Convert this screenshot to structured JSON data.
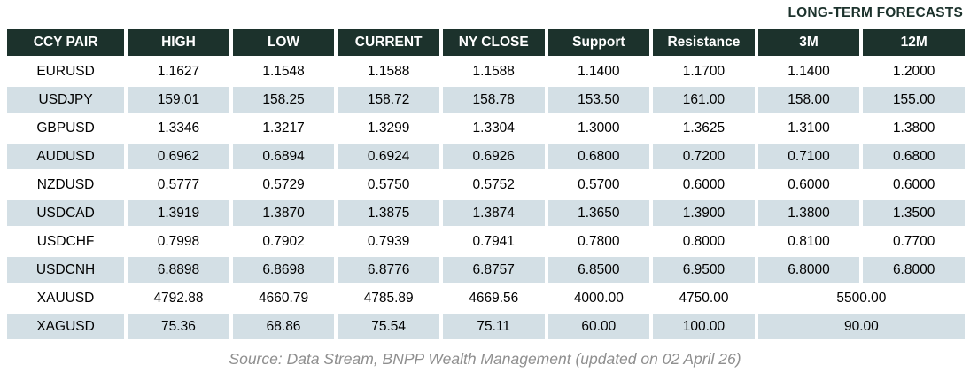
{
  "title": "LONG-TERM FORECASTS",
  "columns": [
    "CCY PAIR",
    "HIGH",
    "LOW",
    "CURRENT",
    "NY CLOSE",
    "Support",
    "Resistance",
    "3M",
    "12M"
  ],
  "rows": [
    {
      "pair": "EURUSD",
      "high": "1.1627",
      "low": "1.1548",
      "current": "1.1588",
      "ny_close": "1.1588",
      "support": "1.1400",
      "resistance": "1.1700",
      "m3": "1.1400",
      "m12": "1.2000"
    },
    {
      "pair": "USDJPY",
      "high": "159.01",
      "low": "158.25",
      "current": "158.72",
      "ny_close": "158.78",
      "support": "153.50",
      "resistance": "161.00",
      "m3": "158.00",
      "m12": "155.00"
    },
    {
      "pair": "GBPUSD",
      "high": "1.3346",
      "low": "1.3217",
      "current": "1.3299",
      "ny_close": "1.3304",
      "support": "1.3000",
      "resistance": "1.3625",
      "m3": "1.3100",
      "m12": "1.3800"
    },
    {
      "pair": "AUDUSD",
      "high": "0.6962",
      "low": "0.6894",
      "current": "0.6924",
      "ny_close": "0.6926",
      "support": "0.6800",
      "resistance": "0.7200",
      "m3": "0.7100",
      "m12": "0.6800"
    },
    {
      "pair": "NZDUSD",
      "high": "0.5777",
      "low": "0.5729",
      "current": "0.5750",
      "ny_close": "0.5752",
      "support": "0.5700",
      "resistance": "0.6000",
      "m3": "0.6000",
      "m12": "0.6000"
    },
    {
      "pair": "USDCAD",
      "high": "1.3919",
      "low": "1.3870",
      "current": "1.3875",
      "ny_close": "1.3874",
      "support": "1.3650",
      "resistance": "1.3900",
      "m3": "1.3800",
      "m12": "1.3500"
    },
    {
      "pair": "USDCHF",
      "high": "0.7998",
      "low": "0.7902",
      "current": "0.7939",
      "ny_close": "0.7941",
      "support": "0.7800",
      "resistance": "0.8000",
      "m3": "0.8100",
      "m12": "0.7700"
    },
    {
      "pair": "USDCNH",
      "high": "6.8898",
      "low": "6.8698",
      "current": "6.8776",
      "ny_close": "6.8757",
      "support": "6.8500",
      "resistance": "6.9500",
      "m3": "6.8000",
      "m12": "6.8000"
    },
    {
      "pair": "XAUUSD",
      "high": "4792.88",
      "low": "4660.79",
      "current": "4785.89",
      "ny_close": "4669.56",
      "support": "4000.00",
      "resistance": "4750.00",
      "long_term": "5500.00"
    },
    {
      "pair": "XAGUSD",
      "high": "75.36",
      "low": "68.86",
      "current": "75.54",
      "ny_close": "75.11",
      "support": "60.00",
      "resistance": "100.00",
      "long_term": "90.00"
    }
  ],
  "footer": "Source: Data Stream, BNPP Wealth Management (updated on 02 April 26)",
  "colors": {
    "header_bg": "#1c322c",
    "stripe_bg": "#d3dfe5",
    "title_text": "#1c322c",
    "footer_text": "#8f8f8f",
    "header_text": "#ffffff"
  }
}
